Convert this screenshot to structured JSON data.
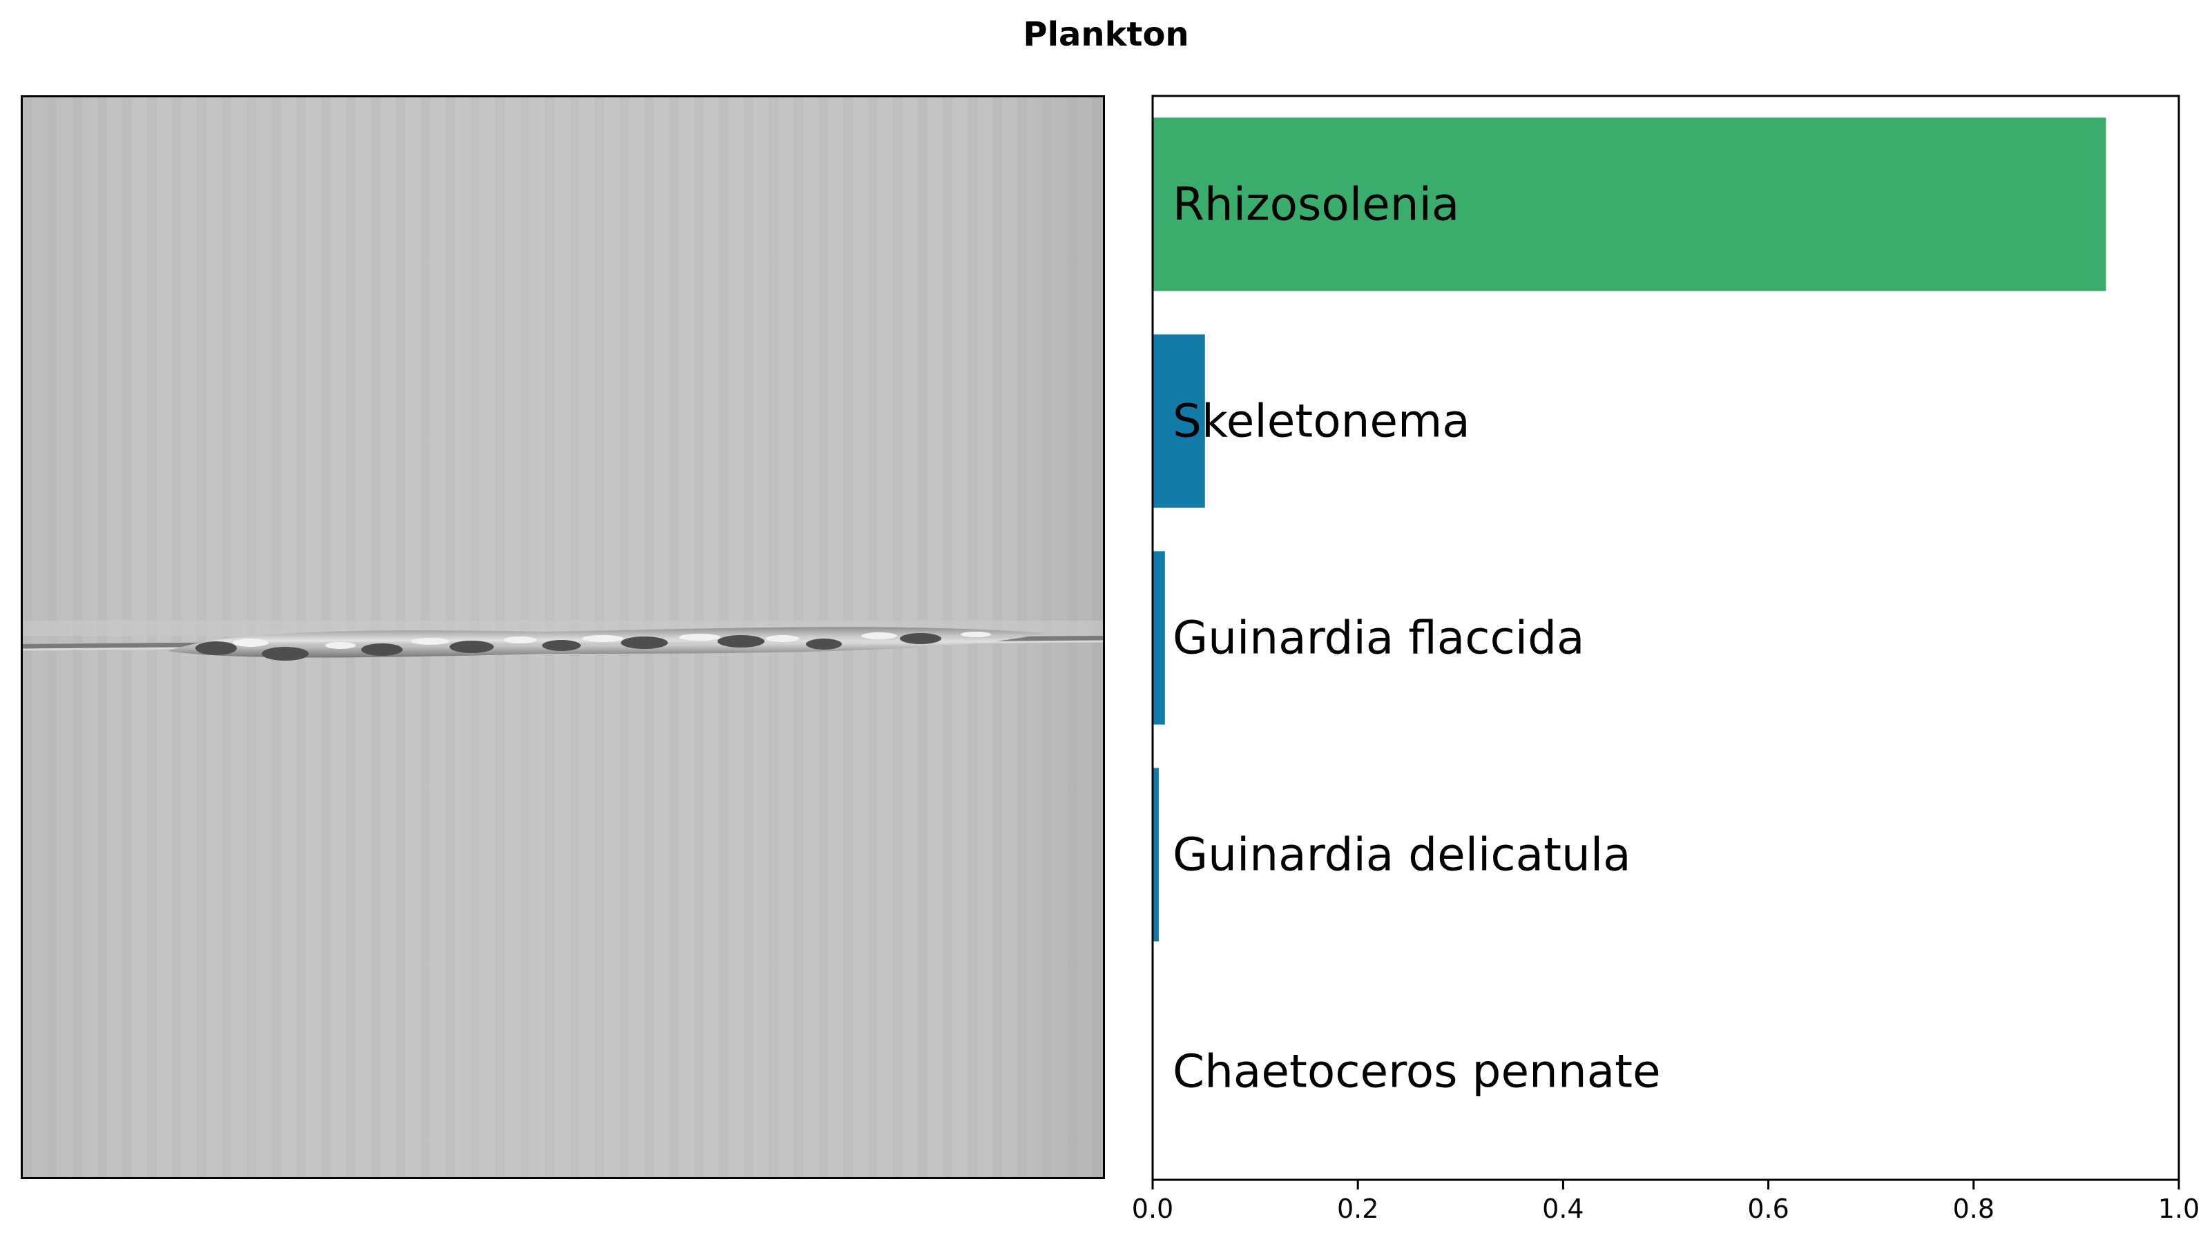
{
  "figure": {
    "title": "Plankton"
  },
  "chart_data": {
    "type": "bar",
    "orientation": "horizontal",
    "categories": [
      "Rhizosolenia",
      "Skeletonema",
      "Guinardia flaccida",
      "Guinardia delicatula",
      "Chaetoceros pennate"
    ],
    "values": [
      0.929,
      0.051,
      0.012,
      0.006,
      0.0
    ],
    "xlim": [
      0,
      1.0
    ],
    "xticks": [
      "0.0",
      "0.2",
      "0.4",
      "0.6",
      "0.8",
      "1.0"
    ],
    "bar_colors": [
      "#3aad6c",
      "#137ba7",
      "#137ba7",
      "#137ba7",
      "#137ba7"
    ],
    "xlabel": "",
    "ylabel": "",
    "grid": false
  },
  "image_panel": {
    "content": "grayscale plankton micrograph of an elongated chain-forming diatom"
  }
}
